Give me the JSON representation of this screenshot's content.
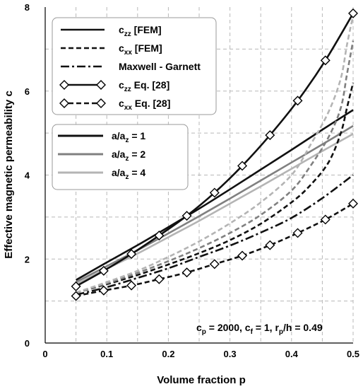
{
  "chart_data": {
    "type": "line",
    "xlabel": "Volume fraction p",
    "ylabel": "Effective magnetic permeability c",
    "xlim": [
      0,
      0.5
    ],
    "ylim": [
      0,
      8
    ],
    "xticks": [
      "0",
      "0.1",
      "0.2",
      "0.3",
      "0.4",
      "0.5"
    ],
    "yticks": [
      "0",
      "2",
      "4",
      "6",
      "8"
    ],
    "grid": true,
    "annotation": {
      "main": "c",
      "parts": [
        {
          "t": "c"
        },
        {
          "t": "p",
          "sub": true
        },
        {
          "t": " = 2000, c"
        },
        {
          "t": "f",
          "sub": true
        },
        {
          "t": " = 1, r"
        },
        {
          "t": "p",
          "sub": true
        },
        {
          "t": "/h = 0.49"
        }
      ]
    },
    "legend_style": {
      "placement": "top-left",
      "entries": [
        {
          "parts": [
            {
              "t": "c"
            },
            {
              "t": "zz",
              "sub": true
            },
            {
              "t": " [FEM]"
            }
          ],
          "dash": "solid",
          "marker": false
        },
        {
          "parts": [
            {
              "t": "c"
            },
            {
              "t": "xx",
              "sub": true
            },
            {
              "t": " [FEM]"
            }
          ],
          "dash": "dashed",
          "marker": false
        },
        {
          "parts": [
            {
              "t": "Maxwell - Garnett"
            }
          ],
          "dash": "dashdot",
          "marker": false
        },
        {
          "parts": [
            {
              "t": "c"
            },
            {
              "t": "zz",
              "sub": true
            },
            {
              "t": " Eq. [28]"
            }
          ],
          "dash": "solid",
          "marker": true
        },
        {
          "parts": [
            {
              "t": "c"
            },
            {
              "t": "xx",
              "sub": true
            },
            {
              "t": " Eq. [28]"
            }
          ],
          "dash": "dashed",
          "marker": true
        }
      ]
    },
    "legend_color": {
      "placement": "upper-left",
      "entries": [
        {
          "parts": [
            {
              "t": "a/a"
            },
            {
              "t": "z",
              "sub": true
            },
            {
              "t": " = 1"
            }
          ],
          "color": "#111111"
        },
        {
          "parts": [
            {
              "t": "a/a"
            },
            {
              "t": "z",
              "sub": true
            },
            {
              "t": " = 2"
            }
          ],
          "color": "#808080"
        },
        {
          "parts": [
            {
              "t": "a/a"
            },
            {
              "t": "z",
              "sub": true
            },
            {
              "t": " = 4"
            }
          ],
          "color": "#b4b4b4"
        }
      ]
    },
    "series": [
      {
        "kind": "czz-fem",
        "aspect": "1",
        "color": "#111111",
        "dash": "solid",
        "x": [
          0.05,
          0.1,
          0.15,
          0.2,
          0.25,
          0.3,
          0.35,
          0.4,
          0.45,
          0.5
        ],
        "y": [
          1.5,
          1.92,
          2.33,
          2.76,
          3.2,
          3.66,
          4.13,
          4.6,
          5.08,
          5.55
        ]
      },
      {
        "kind": "czz-fem",
        "aspect": "2",
        "color": "#808080",
        "dash": "solid",
        "x": [
          0.05,
          0.1,
          0.15,
          0.2,
          0.25,
          0.3,
          0.35,
          0.4,
          0.45,
          0.5
        ],
        "y": [
          1.45,
          1.83,
          2.21,
          2.61,
          3.02,
          3.44,
          3.87,
          4.3,
          4.73,
          5.17
        ]
      },
      {
        "kind": "czz-fem",
        "aspect": "4",
        "color": "#b4b4b4",
        "dash": "solid",
        "x": [
          0.05,
          0.1,
          0.15,
          0.2,
          0.25,
          0.3,
          0.35,
          0.4,
          0.45,
          0.5
        ],
        "y": [
          1.4,
          1.77,
          2.13,
          2.52,
          2.91,
          3.32,
          3.73,
          4.15,
          4.57,
          4.98
        ]
      },
      {
        "kind": "cxx-fem",
        "aspect": "1",
        "color": "#111111",
        "dash": "dashed",
        "x": [
          0.05,
          0.1,
          0.15,
          0.2,
          0.25,
          0.3,
          0.35,
          0.4,
          0.43,
          0.46,
          0.48,
          0.49,
          0.5
        ],
        "y": [
          1.2,
          1.4,
          1.62,
          1.87,
          2.14,
          2.45,
          2.84,
          3.35,
          3.75,
          4.3,
          5.0,
          5.6,
          6.2
        ]
      },
      {
        "kind": "cxx-fem",
        "aspect": "2",
        "color": "#808080",
        "dash": "dashed",
        "x": [
          0.05,
          0.1,
          0.15,
          0.2,
          0.25,
          0.3,
          0.35,
          0.4,
          0.43,
          0.46,
          0.48,
          0.49,
          0.5
        ],
        "y": [
          1.2,
          1.42,
          1.67,
          1.95,
          2.26,
          2.62,
          3.05,
          3.63,
          4.2,
          4.9,
          5.6,
          6.4,
          7.2
        ]
      },
      {
        "kind": "cxx-fem",
        "aspect": "4",
        "color": "#b4b4b4",
        "dash": "dashed",
        "x": [
          0.05,
          0.1,
          0.15,
          0.2,
          0.25,
          0.3,
          0.35,
          0.4,
          0.43,
          0.46,
          0.48,
          0.49,
          0.5
        ],
        "y": [
          1.2,
          1.45,
          1.72,
          2.05,
          2.42,
          2.85,
          3.35,
          4.0,
          4.7,
          5.5,
          6.3,
          7.1,
          7.8
        ]
      },
      {
        "kind": "maxwell-garnett",
        "aspect": "",
        "color": "#111111",
        "dash": "dashdot",
        "x": [
          0.05,
          0.1,
          0.15,
          0.2,
          0.25,
          0.3,
          0.35,
          0.4,
          0.45,
          0.5
        ],
        "y": [
          1.15,
          1.33,
          1.55,
          1.78,
          2.05,
          2.32,
          2.63,
          2.98,
          3.45,
          4.0
        ]
      },
      {
        "kind": "czz-eq28",
        "aspect": "",
        "color": "#111111",
        "dash": "solid",
        "marker": "diamond",
        "x": [
          0.05,
          0.095,
          0.14,
          0.185,
          0.23,
          0.275,
          0.32,
          0.365,
          0.41,
          0.455,
          0.5
        ],
        "y": [
          1.35,
          1.72,
          2.12,
          2.56,
          3.03,
          3.58,
          4.22,
          4.95,
          5.77,
          6.73,
          7.85
        ]
      },
      {
        "kind": "cxx-eq28",
        "aspect": "",
        "color": "#111111",
        "dash": "dashed",
        "marker": "diamond",
        "x": [
          0.05,
          0.095,
          0.14,
          0.185,
          0.23,
          0.275,
          0.32,
          0.365,
          0.41,
          0.455,
          0.5
        ],
        "y": [
          1.12,
          1.25,
          1.37,
          1.52,
          1.68,
          1.88,
          2.08,
          2.33,
          2.62,
          2.94,
          3.32
        ]
      }
    ]
  }
}
